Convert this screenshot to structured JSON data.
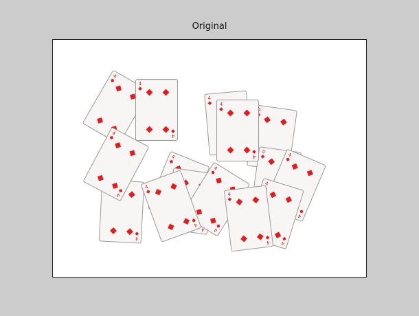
{
  "figure": {
    "title": "Original"
  },
  "card": {
    "rank": "4",
    "suit": "diamonds",
    "suit_color": "#e31b1b"
  },
  "cards_count": 15
}
